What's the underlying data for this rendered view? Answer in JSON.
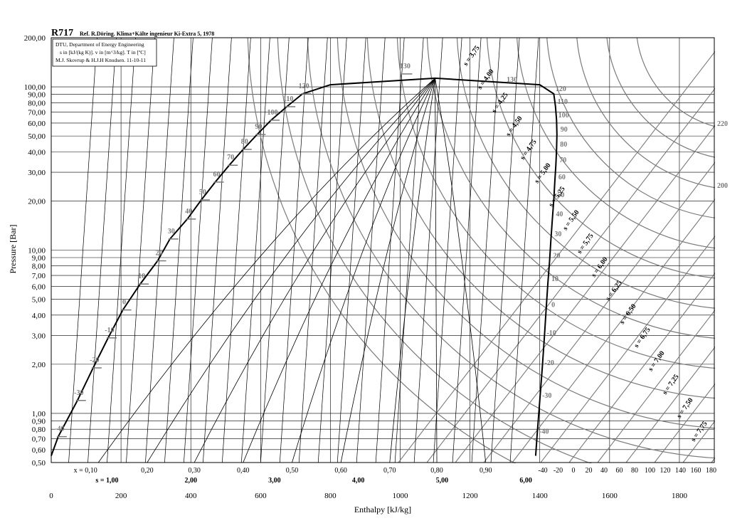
{
  "header": {
    "title": "R717",
    "reference": "Ref. R.Döring. Klima+Kälte ingenieur Ki-Extra 5, 1978",
    "info_lines": [
      "DTU, Department of Energy Engineering",
      "s in [kJ/(kg K)]. v in [m^3/kg]. T in [ºC]",
      "M.J. Skovrup & H.J.H Knudsen. 11-10-11"
    ]
  },
  "chart_data": {
    "type": "line",
    "xlabel": "Enthalpy [kJ/kg]",
    "ylabel": "Pressure [Bar]",
    "xlim": [
      0,
      1900
    ],
    "ylim": [
      0.5,
      200
    ],
    "y_scale": "log",
    "grid": true,
    "x_ticks": [
      0,
      200,
      400,
      600,
      800,
      1000,
      1200,
      1400,
      1600,
      1800
    ],
    "x_tick_labels": [
      "0",
      "200",
      "400",
      "600",
      "800",
      "1000",
      "1200",
      "1400",
      "1600",
      "1800"
    ],
    "y_ticks": [
      0.5,
      0.6,
      0.7,
      0.8,
      0.9,
      1,
      2,
      3,
      4,
      5,
      6,
      7,
      8,
      9,
      10,
      20,
      30,
      40,
      50,
      60,
      70,
      80,
      90,
      100,
      200
    ],
    "y_tick_labels": [
      "0,50",
      "0,60",
      "0,70",
      "0,80",
      "0,90",
      "1,00",
      "2,00",
      "3,00",
      "4,00",
      "5,00",
      "6,00",
      "7,00",
      "8,00",
      "9,00",
      "10,00",
      "20,00",
      "30,00",
      "40,00",
      "50,00",
      "60,00",
      "70,00",
      "80,00",
      "90,00",
      "100,00",
      "200,00"
    ],
    "saturation_dome": {
      "pressure": [
        0.55,
        0.72,
        1.2,
        1.9,
        2.9,
        4.3,
        6.2,
        8.6,
        11.7,
        15.5,
        20.3,
        26.1,
        33.1,
        41.4,
        51.1,
        62.5,
        75.6,
        90.6,
        103,
        113,
        103,
        90.6,
        75.6,
        62.5,
        51.1,
        41.4,
        33.1,
        26.1,
        20.3,
        15.5,
        11.7,
        8.6,
        6.2,
        4.3,
        2.9,
        1.9,
        1.2,
        0.72,
        0.55
      ],
      "enthalpy": [
        0,
        20,
        75,
        120,
        163,
        205,
        255,
        305,
        340,
        390,
        430,
        470,
        510,
        550,
        590,
        630,
        675,
        720,
        800,
        1100,
        1400,
        1440,
        1445,
        1448,
        1449,
        1448,
        1446,
        1443,
        1440,
        1436,
        1432,
        1428,
        1423,
        1418,
        1413,
        1407,
        1400,
        1392,
        1388
      ]
    },
    "saturated_liquid_temperatures": [
      {
        "label": "-40",
        "p": 0.72,
        "h": 20
      },
      {
        "label": "-30",
        "p": 1.2,
        "h": 75
      },
      {
        "label": "-20",
        "p": 1.9,
        "h": 120
      },
      {
        "label": "-10",
        "p": 2.9,
        "h": 163
      },
      {
        "label": "0",
        "p": 4.3,
        "h": 205
      },
      {
        "label": "10",
        "p": 6.2,
        "h": 255
      },
      {
        "label": "20",
        "p": 8.6,
        "h": 305
      },
      {
        "label": "30",
        "p": 11.7,
        "h": 340
      },
      {
        "label": "40",
        "p": 15.5,
        "h": 390
      },
      {
        "label": "50",
        "p": 20.3,
        "h": 430
      },
      {
        "label": "60",
        "p": 26.1,
        "h": 470
      },
      {
        "label": "70",
        "p": 33.1,
        "h": 510
      },
      {
        "label": "80",
        "p": 41.4,
        "h": 550
      },
      {
        "label": "90",
        "p": 51.1,
        "h": 590
      },
      {
        "label": "100",
        "p": 62.5,
        "h": 630
      },
      {
        "label": "110",
        "p": 75.6,
        "h": 675
      },
      {
        "label": "120",
        "p": 90.6,
        "h": 720
      },
      {
        "label": "130",
        "p": 120,
        "h": 1010
      }
    ],
    "saturated_vapour_temperatures": [
      {
        "label": "-40",
        "p": 0.72,
        "h": 1392
      },
      {
        "label": "-30",
        "p": 1.2,
        "h": 1400
      },
      {
        "label": "-20",
        "p": 1.9,
        "h": 1407
      },
      {
        "label": "-10",
        "p": 2.9,
        "h": 1413
      },
      {
        "label": "0",
        "p": 4.3,
        "h": 1418
      },
      {
        "label": "10",
        "p": 6.2,
        "h": 1423
      },
      {
        "label": "20",
        "p": 8.6,
        "h": 1428
      },
      {
        "label": "30",
        "p": 11.7,
        "h": 1432
      },
      {
        "label": "40",
        "p": 15.5,
        "h": 1436
      },
      {
        "label": "50",
        "p": 20.3,
        "h": 1440
      },
      {
        "label": "60",
        "p": 26.1,
        "h": 1443
      },
      {
        "label": "70",
        "p": 33.1,
        "h": 1446
      },
      {
        "label": "80",
        "p": 41.4,
        "h": 1448
      },
      {
        "label": "90",
        "p": 51.1,
        "h": 1449
      },
      {
        "label": "100",
        "p": 62.5,
        "h": 1448
      },
      {
        "label": "110",
        "p": 75.6,
        "h": 1445
      },
      {
        "label": "120",
        "p": 90.6,
        "h": 1440
      },
      {
        "label": "130",
        "p": 103,
        "h": 1300
      }
    ],
    "isotherm_right_labels": [
      {
        "label": "220",
        "p": 60
      },
      {
        "label": "200",
        "p": 25
      }
    ],
    "vapour_quality_labels": [
      "x = 0,10",
      "0,20",
      "0,30",
      "0,40",
      "0,50",
      "0,60",
      "0,70",
      "0,80",
      "0,90"
    ],
    "vapour_quality_h": [
      135,
      275,
      410,
      550,
      690,
      830,
      970,
      1105,
      1245
    ],
    "entropy_bottom_labels": [
      "s = 1,00",
      "2,00",
      "3,00",
      "4,00",
      "5,00",
      "6,00"
    ],
    "entropy_bottom_h": [
      160,
      400,
      640,
      880,
      1120,
      1360
    ],
    "bottom_temperature_labels": [
      "-40",
      "-20",
      "0",
      "20",
      "40",
      "60",
      "80",
      "100",
      "120",
      "140",
      "160",
      "180"
    ],
    "isentropes": [
      "s = 3,75",
      "s = 4,00",
      "s = 4,25",
      "s = 4,50",
      "s = 4,75",
      "s = 5,00",
      "s = 5,25",
      "s = 5,50",
      "s = 5,75",
      "s = 6,00",
      "s = 6,25",
      "s = 6,50",
      "s = 6,75",
      "s = 7,00",
      "s = 7,25",
      "s = 7,50",
      "s = 7,75"
    ]
  }
}
